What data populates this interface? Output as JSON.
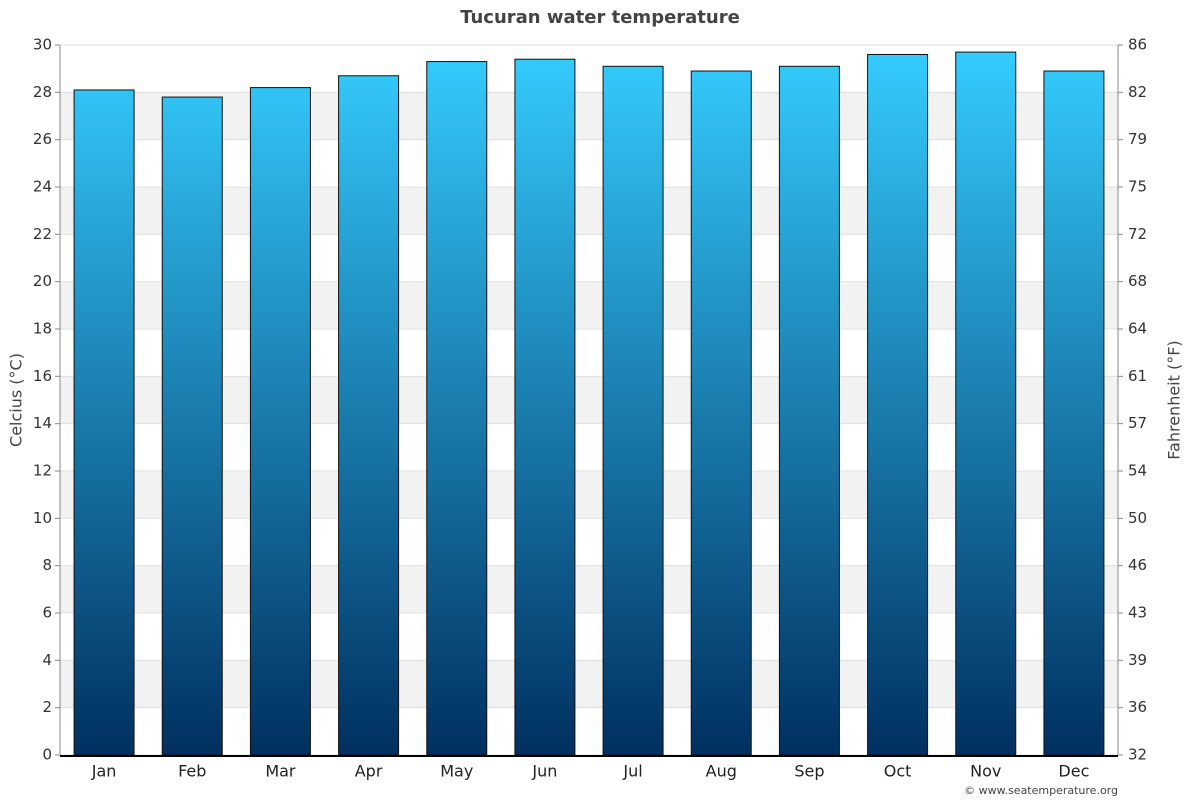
{
  "chart_data": {
    "type": "bar",
    "title": "Tucuran water temperature",
    "categories": [
      "Jan",
      "Feb",
      "Mar",
      "Apr",
      "May",
      "Jun",
      "Jul",
      "Aug",
      "Sep",
      "Oct",
      "Nov",
      "Dec"
    ],
    "values": [
      28.1,
      27.8,
      28.2,
      28.7,
      29.3,
      29.4,
      29.1,
      28.9,
      29.1,
      29.6,
      29.7,
      28.9
    ],
    "gradient": [
      "#35cdff",
      "#003060"
    ],
    "ylabel": "Celcius (°C)",
    "y2label": "Fahrenheit (°F)",
    "ylim": [
      0,
      30
    ],
    "yticks": [
      0,
      2,
      4,
      6,
      8,
      10,
      12,
      14,
      16,
      18,
      20,
      22,
      24,
      26,
      28,
      30
    ],
    "y2lim": [
      32,
      86
    ],
    "y2ticks": [
      32,
      {
        "value": 35.6,
        "label": "36"
      },
      {
        "value": 39.2,
        "label": "39"
      },
      {
        "value": 42.8,
        "label": "43"
      },
      {
        "value": 46.4,
        "label": "46"
      },
      50,
      {
        "value": 53.6,
        "label": "54"
      },
      {
        "value": 57.2,
        "label": "57"
      },
      {
        "value": 60.8,
        "label": "61"
      },
      {
        "value": 64.4,
        "label": "64"
      },
      68,
      {
        "value": 71.6,
        "label": "72"
      },
      {
        "value": 75.2,
        "label": "75"
      },
      {
        "value": 78.8,
        "label": "79"
      },
      {
        "value": 82.4,
        "label": "82"
      },
      86
    ],
    "grid": true,
    "credit": "© www.seatemperature.org"
  }
}
